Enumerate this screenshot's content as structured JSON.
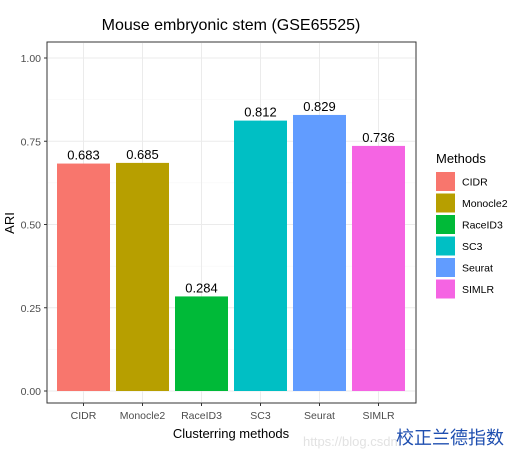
{
  "chart_data": {
    "type": "bar",
    "title": "Mouse embryonic stem (GSE65525)",
    "xlabel": "Clusterring methods",
    "ylabel": "ARI",
    "categories": [
      "CIDR",
      "Monocle2",
      "RaceID3",
      "SC3",
      "Seurat",
      "SIMLR"
    ],
    "values": [
      0.683,
      0.685,
      0.284,
      0.812,
      0.829,
      0.736
    ],
    "value_labels": [
      "0.683",
      "0.685",
      "0.284",
      "0.812",
      "0.829",
      "0.736"
    ],
    "colors": [
      "#F8766D",
      "#B79F00",
      "#00BA38",
      "#00BFC4",
      "#619CFF",
      "#F564E3"
    ],
    "ylim": [
      0,
      1.0
    ],
    "yticks": [
      0,
      0.25,
      0.5,
      0.75,
      1.0
    ],
    "ytick_labels": [
      "0.00",
      "0.25",
      "0.50",
      "0.75",
      "1.00"
    ],
    "grid": true,
    "legend": {
      "title": "Methods",
      "position": "right",
      "entries": [
        "CIDR",
        "Monocle2",
        "RaceID3",
        "SC3",
        "Seurat",
        "SIMLR"
      ]
    }
  },
  "watermark": {
    "url": "https://blog.csdn.",
    "brand": "校正兰德指数"
  }
}
